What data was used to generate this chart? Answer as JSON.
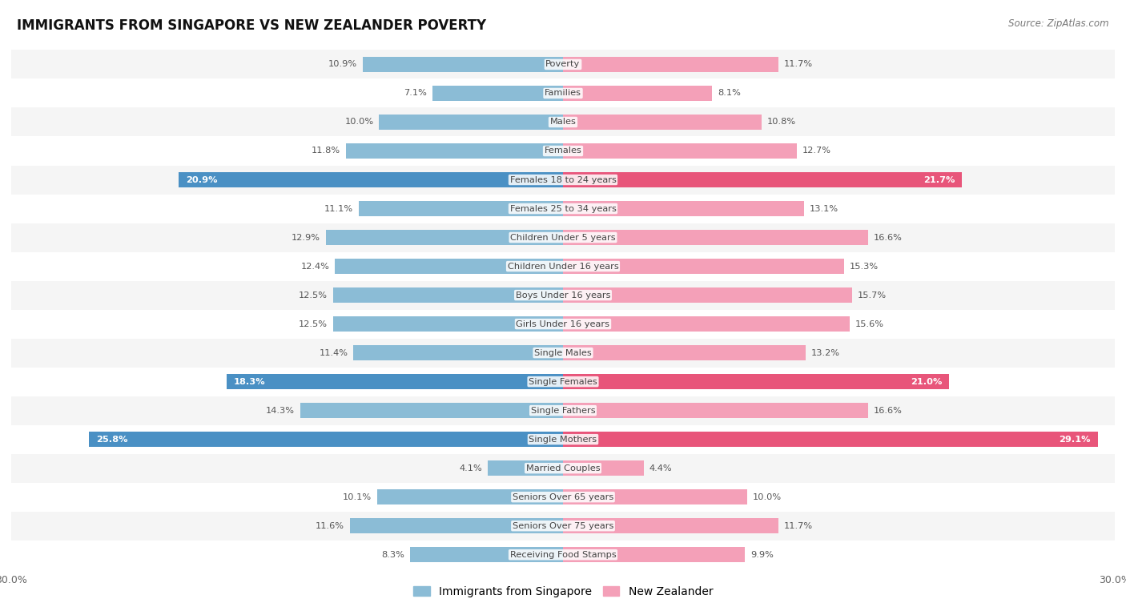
{
  "title": "IMMIGRANTS FROM SINGAPORE VS NEW ZEALANDER POVERTY",
  "source": "Source: ZipAtlas.com",
  "categories": [
    "Poverty",
    "Families",
    "Males",
    "Females",
    "Females 18 to 24 years",
    "Females 25 to 34 years",
    "Children Under 5 years",
    "Children Under 16 years",
    "Boys Under 16 years",
    "Girls Under 16 years",
    "Single Males",
    "Single Females",
    "Single Fathers",
    "Single Mothers",
    "Married Couples",
    "Seniors Over 65 years",
    "Seniors Over 75 years",
    "Receiving Food Stamps"
  ],
  "singapore_values": [
    10.9,
    7.1,
    10.0,
    11.8,
    20.9,
    11.1,
    12.9,
    12.4,
    12.5,
    12.5,
    11.4,
    18.3,
    14.3,
    25.8,
    4.1,
    10.1,
    11.6,
    8.3
  ],
  "nz_values": [
    11.7,
    8.1,
    10.8,
    12.7,
    21.7,
    13.1,
    16.6,
    15.3,
    15.7,
    15.6,
    13.2,
    21.0,
    16.6,
    29.1,
    4.4,
    10.0,
    11.7,
    9.9
  ],
  "singapore_color": "#8bbcd6",
  "nz_color": "#f4a0b8",
  "singapore_highlight_color": "#4a90c4",
  "nz_highlight_color": "#e8557a",
  "highlight_rows": [
    4,
    11,
    13
  ],
  "max_value": 30.0,
  "bg_color": "#ffffff",
  "row_bg_even": "#f5f5f5",
  "row_bg_odd": "#ffffff",
  "legend_singapore": "Immigrants from Singapore",
  "legend_nz": "New Zealander"
}
